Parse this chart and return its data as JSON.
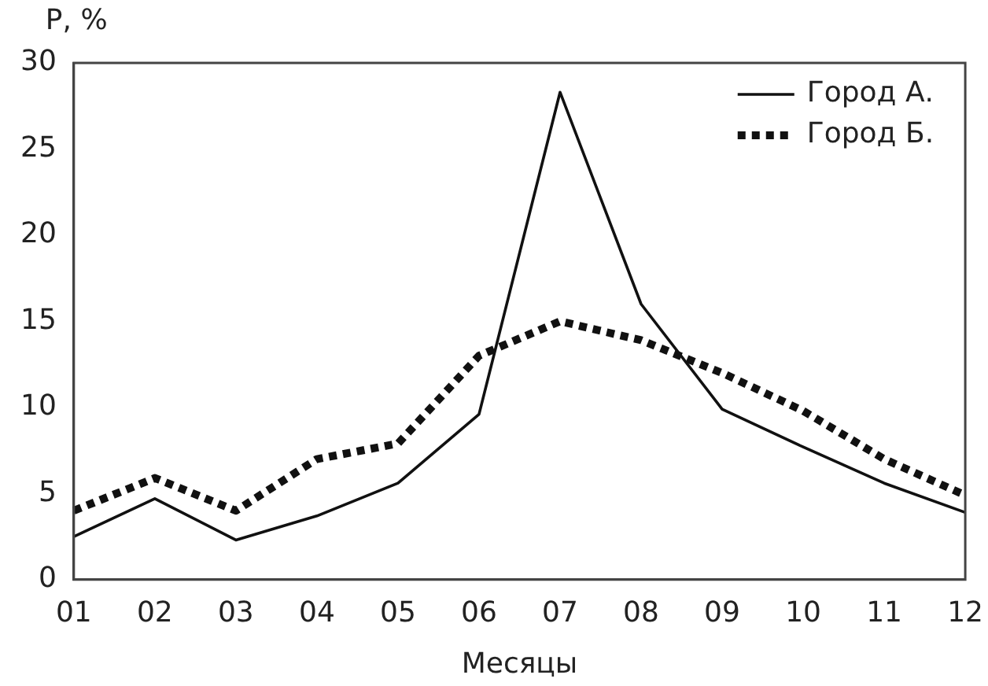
{
  "chart_data": {
    "type": "line",
    "ylabel": "Р, %",
    "xlabel": "Месяцы",
    "categories": [
      "01",
      "02",
      "03",
      "04",
      "05",
      "06",
      "07",
      "08",
      "09",
      "10",
      "11",
      "12"
    ],
    "series": [
      {
        "name": "Город А.",
        "color": "#111111",
        "line_style": "solid",
        "values": [
          2.5,
          4.7,
          2.3,
          3.7,
          5.6,
          9.6,
          28.3,
          16,
          9.9,
          7.7,
          5.6,
          3.9
        ]
      },
      {
        "name": "Город Б.",
        "color": "#111111",
        "line_style": "dotted",
        "values": [
          4,
          5.9,
          4,
          7,
          7.9,
          13,
          15,
          13.9,
          12,
          9.8,
          7,
          4.9
        ]
      }
    ],
    "ylim": [
      0,
      30
    ],
    "yticks": [
      0,
      5,
      10,
      15,
      20,
      25,
      30
    ],
    "grid": false,
    "legend": "top right",
    "marker": "none"
  }
}
